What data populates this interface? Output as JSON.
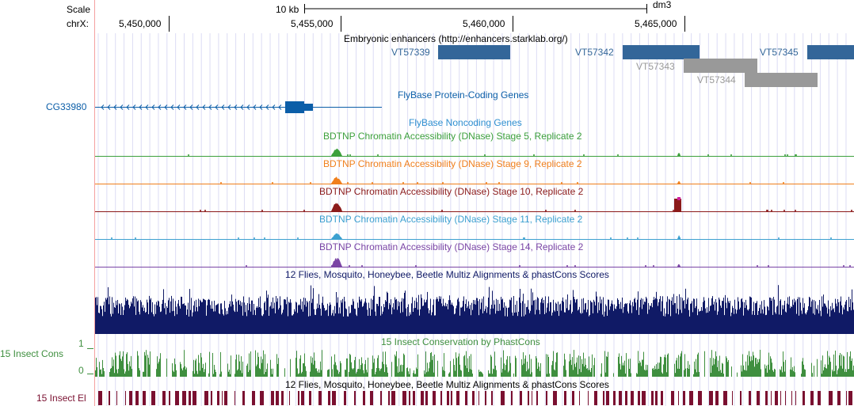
{
  "ruler": {
    "scale_label": "Scale",
    "chrom_label": "chrX:",
    "scalebar_label": "10 kb",
    "assembly": "dm3",
    "ticks": [
      "5,450,000",
      "5,455,000",
      "5,460,000",
      "5,465,000"
    ]
  },
  "tracks": {
    "enhancers": {
      "title": "Embryonic enhancers (http://enhancers.starklab.org/)",
      "items": [
        {
          "name": "VT57339",
          "color": "#336699"
        },
        {
          "name": "VT57342",
          "color": "#336699"
        },
        {
          "name": "VT57343",
          "color": "#999999"
        },
        {
          "name": "VT57344",
          "color": "#999999"
        },
        {
          "name": "VT57345",
          "color": "#336699"
        }
      ]
    },
    "flybase_coding": {
      "title": "FlyBase Protein-Coding Genes",
      "gene": "CG33980",
      "color": "#0b5ea8"
    },
    "flybase_noncoding": {
      "title": "FlyBase Noncoding Genes",
      "color": "#2d8ed0"
    },
    "dnase": [
      {
        "title": "BDTNP Chromatin Accessibility (DNase) Stage 5, Replicate 2",
        "color": "#3ca03c"
      },
      {
        "title": "BDTNP Chromatin Accessibility (DNase) Stage 9, Replicate 2",
        "color": "#f07f1c"
      },
      {
        "title": "BDTNP Chromatin Accessibility (DNase) Stage 10, Replicate 2",
        "color": "#8b1a1a"
      },
      {
        "title": "BDTNP Chromatin Accessibility (DNase) Stage 11, Replicate 2",
        "color": "#3ca0d0"
      },
      {
        "title": "BDTNP Chromatin Accessibility (DNase) Stage 14, Replicate 2",
        "color": "#7a45a5"
      }
    ],
    "multiz": {
      "title": "12 Flies, Mosquito, Honeybee, Beetle Multiz Alignments & phastCons Scores",
      "color": "#101a66"
    },
    "cons": {
      "title": "15 Insect Conservation by PhastCons",
      "side_label": "15 Insect Cons",
      "axis_max": "1",
      "axis_min": "0",
      "color": "#3f8f3f"
    },
    "elements": {
      "title": "12 Flies, Mosquito, Honeybee, Beetle Multiz Alignments & phastCons Scores",
      "side_label": "15 Insect El",
      "color": "#7a1030"
    }
  }
}
